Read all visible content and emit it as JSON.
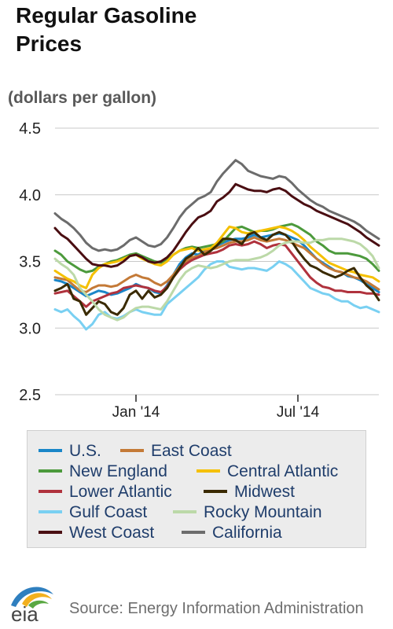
{
  "header": {
    "title_line1": "Regular Gasoline",
    "title_line2": "Prices",
    "units": "(dollars per gallon)"
  },
  "footer": {
    "logo_text": "eia",
    "source": "Source: Energy Information Administration"
  },
  "colors": {
    "U.S.": "#1a86c8",
    "East Coast": "#c47a37",
    "New England": "#4c9a3c",
    "Central Atlantic": "#f5c000",
    "Lower Atlantic": "#b0323d",
    "Midwest": "#3a2a00",
    "Gulf Coast": "#79d0f2",
    "Rocky Mountain": "#bcd9a8",
    "West Coast": "#4a0e12",
    "California": "#6c6c6c"
  },
  "chart_data": {
    "type": "line",
    "title": "Regular Gasoline Prices",
    "ylabel": "(dollars per gallon)",
    "ylim": [
      2.5,
      4.5
    ],
    "y_ticks": [
      "2.5",
      "3.0",
      "3.5",
      "4.0",
      "4.5"
    ],
    "x_ticks": [
      {
        "label": "Jan '14",
        "week": 13
      },
      {
        "label": "Jul '14",
        "week": 39
      }
    ],
    "x_range_weeks": [
      0,
      52
    ],
    "grid": "horizontal",
    "legend_position": "bottom",
    "series": [
      {
        "name": "U.S.",
        "values": [
          3.36,
          3.35,
          3.33,
          3.3,
          3.27,
          3.24,
          3.26,
          3.28,
          3.27,
          3.25,
          3.26,
          3.28,
          3.3,
          3.33,
          3.31,
          3.3,
          3.27,
          3.26,
          3.32,
          3.4,
          3.48,
          3.53,
          3.56,
          3.55,
          3.58,
          3.6,
          3.62,
          3.64,
          3.66,
          3.67,
          3.67,
          3.68,
          3.7,
          3.68,
          3.69,
          3.7,
          3.71,
          3.7,
          3.68,
          3.66,
          3.62,
          3.57,
          3.52,
          3.49,
          3.46,
          3.43,
          3.42,
          3.39,
          3.38,
          3.36,
          3.33,
          3.3,
          3.27
        ]
      },
      {
        "name": "East Coast",
        "values": [
          3.38,
          3.37,
          3.36,
          3.32,
          3.28,
          3.27,
          3.3,
          3.32,
          3.32,
          3.31,
          3.32,
          3.35,
          3.38,
          3.4,
          3.38,
          3.37,
          3.34,
          3.32,
          3.35,
          3.4,
          3.46,
          3.5,
          3.53,
          3.54,
          3.57,
          3.59,
          3.6,
          3.62,
          3.64,
          3.65,
          3.65,
          3.66,
          3.68,
          3.66,
          3.65,
          3.66,
          3.67,
          3.66,
          3.64,
          3.62,
          3.6,
          3.56,
          3.52,
          3.48,
          3.45,
          3.43,
          3.42,
          3.4,
          3.38,
          3.37,
          3.35,
          3.32,
          3.29
        ]
      },
      {
        "name": "New England",
        "values": [
          3.58,
          3.55,
          3.5,
          3.47,
          3.44,
          3.42,
          3.43,
          3.46,
          3.48,
          3.5,
          3.51,
          3.53,
          3.55,
          3.56,
          3.54,
          3.52,
          3.5,
          3.49,
          3.51,
          3.55,
          3.58,
          3.6,
          3.61,
          3.6,
          3.61,
          3.62,
          3.63,
          3.65,
          3.7,
          3.75,
          3.76,
          3.74,
          3.72,
          3.73,
          3.73,
          3.74,
          3.76,
          3.77,
          3.78,
          3.76,
          3.73,
          3.7,
          3.65,
          3.62,
          3.58,
          3.56,
          3.56,
          3.56,
          3.55,
          3.54,
          3.52,
          3.48,
          3.43
        ]
      },
      {
        "name": "Central Atlantic",
        "values": [
          3.43,
          3.4,
          3.37,
          3.35,
          3.32,
          3.3,
          3.4,
          3.45,
          3.48,
          3.49,
          3.5,
          3.52,
          3.54,
          3.55,
          3.52,
          3.5,
          3.48,
          3.47,
          3.5,
          3.55,
          3.58,
          3.59,
          3.6,
          3.58,
          3.59,
          3.6,
          3.64,
          3.7,
          3.76,
          3.75,
          3.72,
          3.71,
          3.72,
          3.73,
          3.74,
          3.75,
          3.76,
          3.75,
          3.73,
          3.7,
          3.66,
          3.61,
          3.57,
          3.53,
          3.49,
          3.47,
          3.45,
          3.43,
          3.42,
          3.4,
          3.39,
          3.38,
          3.35
        ]
      },
      {
        "name": "Lower Atlantic",
        "values": [
          3.26,
          3.27,
          3.28,
          3.24,
          3.2,
          3.16,
          3.2,
          3.22,
          3.24,
          3.26,
          3.27,
          3.3,
          3.31,
          3.32,
          3.31,
          3.3,
          3.28,
          3.27,
          3.31,
          3.38,
          3.44,
          3.48,
          3.51,
          3.53,
          3.55,
          3.56,
          3.57,
          3.59,
          3.62,
          3.63,
          3.62,
          3.63,
          3.65,
          3.63,
          3.6,
          3.62,
          3.63,
          3.62,
          3.56,
          3.5,
          3.44,
          3.38,
          3.34,
          3.31,
          3.3,
          3.28,
          3.28,
          3.27,
          3.27,
          3.27,
          3.26,
          3.26,
          3.25
        ]
      },
      {
        "name": "Midwest",
        "values": [
          3.28,
          3.3,
          3.33,
          3.22,
          3.2,
          3.1,
          3.15,
          3.2,
          3.18,
          3.12,
          3.1,
          3.15,
          3.25,
          3.28,
          3.22,
          3.28,
          3.23,
          3.25,
          3.3,
          3.38,
          3.45,
          3.52,
          3.55,
          3.6,
          3.55,
          3.58,
          3.62,
          3.67,
          3.67,
          3.66,
          3.63,
          3.7,
          3.72,
          3.68,
          3.66,
          3.7,
          3.72,
          3.7,
          3.65,
          3.58,
          3.52,
          3.47,
          3.45,
          3.42,
          3.4,
          3.38,
          3.4,
          3.43,
          3.45,
          3.38,
          3.32,
          3.28,
          3.21
        ]
      },
      {
        "name": "Gulf Coast",
        "values": [
          3.14,
          3.12,
          3.14,
          3.09,
          3.05,
          2.99,
          3.03,
          3.1,
          3.12,
          3.08,
          3.07,
          3.09,
          3.12,
          3.14,
          3.12,
          3.11,
          3.1,
          3.1,
          3.18,
          3.22,
          3.26,
          3.3,
          3.34,
          3.38,
          3.44,
          3.48,
          3.5,
          3.5,
          3.46,
          3.45,
          3.44,
          3.45,
          3.45,
          3.44,
          3.43,
          3.46,
          3.5,
          3.48,
          3.45,
          3.4,
          3.35,
          3.3,
          3.28,
          3.26,
          3.25,
          3.22,
          3.2,
          3.2,
          3.17,
          3.15,
          3.16,
          3.14,
          3.12
        ]
      },
      {
        "name": "Rocky Mountain",
        "values": [
          3.52,
          3.48,
          3.45,
          3.4,
          3.3,
          3.25,
          3.2,
          3.14,
          3.1,
          3.08,
          3.06,
          3.08,
          3.12,
          3.15,
          3.16,
          3.16,
          3.15,
          3.14,
          3.2,
          3.28,
          3.36,
          3.42,
          3.45,
          3.47,
          3.46,
          3.45,
          3.46,
          3.48,
          3.5,
          3.51,
          3.51,
          3.51,
          3.52,
          3.53,
          3.55,
          3.58,
          3.62,
          3.64,
          3.65,
          3.65,
          3.64,
          3.64,
          3.66,
          3.66,
          3.67,
          3.67,
          3.67,
          3.66,
          3.65,
          3.63,
          3.59,
          3.54,
          3.45
        ]
      },
      {
        "name": "West Coast",
        "values": [
          3.75,
          3.7,
          3.67,
          3.62,
          3.57,
          3.52,
          3.48,
          3.47,
          3.47,
          3.46,
          3.47,
          3.5,
          3.54,
          3.55,
          3.53,
          3.5,
          3.49,
          3.5,
          3.53,
          3.58,
          3.65,
          3.72,
          3.78,
          3.83,
          3.85,
          3.88,
          3.95,
          3.98,
          4.02,
          4.08,
          4.06,
          4.04,
          4.03,
          4.03,
          4.02,
          4.04,
          4.05,
          4.03,
          3.99,
          3.96,
          3.93,
          3.91,
          3.88,
          3.86,
          3.84,
          3.82,
          3.8,
          3.78,
          3.75,
          3.72,
          3.68,
          3.65,
          3.62
        ]
      },
      {
        "name": "California",
        "values": [
          3.86,
          3.82,
          3.79,
          3.75,
          3.7,
          3.64,
          3.6,
          3.58,
          3.59,
          3.58,
          3.59,
          3.62,
          3.66,
          3.68,
          3.65,
          3.62,
          3.61,
          3.63,
          3.68,
          3.75,
          3.83,
          3.89,
          3.93,
          3.97,
          3.99,
          4.02,
          4.1,
          4.16,
          4.21,
          4.26,
          4.23,
          4.18,
          4.16,
          4.14,
          4.13,
          4.12,
          4.14,
          4.13,
          4.09,
          4.04,
          4.0,
          3.96,
          3.93,
          3.91,
          3.88,
          3.86,
          3.84,
          3.82,
          3.8,
          3.77,
          3.73,
          3.7,
          3.67
        ]
      }
    ]
  },
  "legend": {
    "items": [
      {
        "label": "U.S."
      },
      {
        "label": "East Coast"
      },
      {
        "label": "New England"
      },
      {
        "label": "Central Atlantic"
      },
      {
        "label": "Lower Atlantic"
      },
      {
        "label": "Midwest"
      },
      {
        "label": "Gulf Coast"
      },
      {
        "label": "Rocky Mountain"
      },
      {
        "label": "West Coast"
      },
      {
        "label": "California"
      }
    ]
  }
}
